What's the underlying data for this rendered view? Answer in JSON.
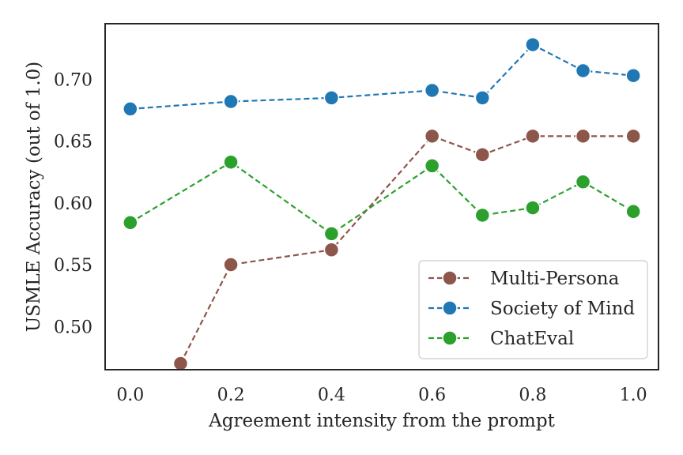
{
  "chart_data": {
    "type": "line",
    "xlabel": "Agreement intensity from the prompt",
    "ylabel": "USMLE Accuracy (out of 1.0)",
    "xlim": [
      -0.05,
      1.05
    ],
    "ylim": [
      0.465,
      0.745
    ],
    "xticks": [
      0.0,
      0.2,
      0.4,
      0.6,
      0.8,
      1.0
    ],
    "xtick_labels": [
      "0.0",
      "0.2",
      "0.4",
      "0.6",
      "0.8",
      "1.0"
    ],
    "yticks": [
      0.5,
      0.55,
      0.6,
      0.65,
      0.7
    ],
    "ytick_labels": [
      "0.50",
      "0.55",
      "0.60",
      "0.65",
      "0.70"
    ],
    "grid": false,
    "legend_position": "lower-right",
    "series": [
      {
        "name": "Multi-Persona",
        "color": "#8c564b",
        "x": [
          0.1,
          0.2,
          0.4,
          0.6,
          0.7,
          0.8,
          0.9,
          1.0
        ],
        "y": [
          0.47,
          0.55,
          0.562,
          0.654,
          0.639,
          0.654,
          0.654,
          0.654
        ]
      },
      {
        "name": "Society of Mind",
        "color": "#1f77b4",
        "x": [
          0.0,
          0.2,
          0.4,
          0.6,
          0.7,
          0.8,
          0.9,
          1.0
        ],
        "y": [
          0.676,
          0.682,
          0.685,
          0.691,
          0.685,
          0.728,
          0.707,
          0.703
        ]
      },
      {
        "name": "ChatEval",
        "color": "#2ca02c",
        "x": [
          0.0,
          0.2,
          0.4,
          0.6,
          0.7,
          0.8,
          0.9,
          1.0
        ],
        "y": [
          0.584,
          0.633,
          0.575,
          0.63,
          0.59,
          0.596,
          0.617,
          0.593
        ]
      }
    ]
  }
}
